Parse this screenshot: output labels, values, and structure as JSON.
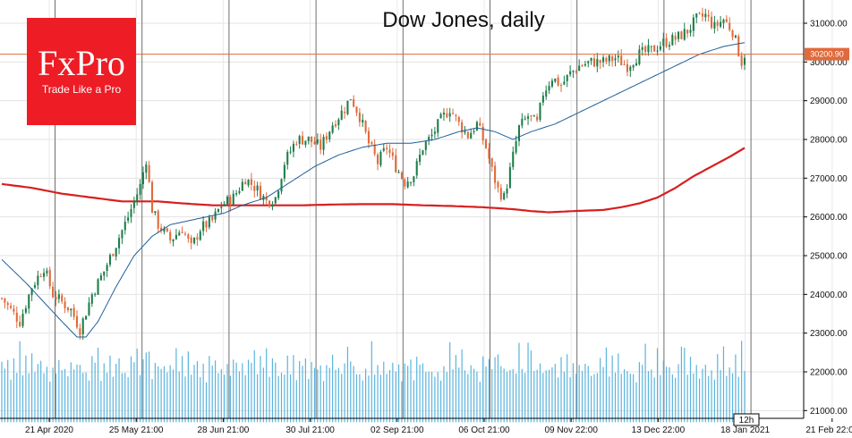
{
  "chart_data": {
    "type": "candlestick",
    "title": "Dow Jones, daily",
    "y_range": [
      20800,
      31600
    ],
    "y_ticks": [
      21000,
      22000,
      23000,
      24000,
      25000,
      26000,
      27000,
      28000,
      29000,
      30000,
      31000
    ],
    "y_tick_labels": [
      "21000.00",
      "22000.00",
      "23000.00",
      "24000.00",
      "25000.00",
      "26000.00",
      "27000.00",
      "28000.00",
      "29000.00",
      "30000.00",
      "31000.00"
    ],
    "x_tick_labels": [
      "21 Apr 2020",
      "25 May 21:00",
      "28 Jun 21:00",
      "30 Jul 21:00",
      "02 Sep 21:00",
      "06 Oct 21:00",
      "09 Nov 22:00",
      "13 Dec 22:00",
      "18 Jan 2021",
      "21 Feb 22:00"
    ],
    "current_price": 30200.9,
    "current_price_label": "30200.90",
    "timeframe_label": "12h",
    "anchors": [
      [
        0,
        23900
      ],
      [
        6,
        23300
      ],
      [
        10,
        24200
      ],
      [
        14,
        24700
      ],
      [
        17,
        24000
      ],
      [
        20,
        23800
      ],
      [
        23,
        23600
      ],
      [
        26,
        23100
      ],
      [
        30,
        24000
      ],
      [
        34,
        24600
      ],
      [
        38,
        25300
      ],
      [
        42,
        26000
      ],
      [
        46,
        26800
      ],
      [
        48,
        27500
      ],
      [
        50,
        26200
      ],
      [
        52,
        25800
      ],
      [
        56,
        25400
      ],
      [
        60,
        25700
      ],
      [
        63,
        25200
      ],
      [
        66,
        25700
      ],
      [
        70,
        25900
      ],
      [
        73,
        26300
      ],
      [
        77,
        26500
      ],
      [
        81,
        27000
      ],
      [
        85,
        26700
      ],
      [
        88,
        26400
      ],
      [
        91,
        26500
      ],
      [
        94,
        27400
      ],
      [
        98,
        28000
      ],
      [
        102,
        28000
      ],
      [
        106,
        27800
      ],
      [
        110,
        28400
      ],
      [
        114,
        28800
      ],
      [
        116,
        29100
      ],
      [
        119,
        28600
      ],
      [
        122,
        27900
      ],
      [
        125,
        27400
      ],
      [
        128,
        27800
      ],
      [
        131,
        27300
      ],
      [
        134,
        26900
      ],
      [
        137,
        27100
      ],
      [
        140,
        27800
      ],
      [
        143,
        28100
      ],
      [
        146,
        28500
      ],
      [
        149,
        28800
      ],
      [
        152,
        28400
      ],
      [
        155,
        28100
      ],
      [
        158,
        28400
      ],
      [
        161,
        27800
      ],
      [
        163,
        27200
      ],
      [
        165,
        26700
      ],
      [
        167,
        26500
      ],
      [
        169,
        27200
      ],
      [
        172,
        28300
      ],
      [
        175,
        28600
      ],
      [
        178,
        28400
      ],
      [
        180,
        29200
      ],
      [
        183,
        29600
      ],
      [
        186,
        29400
      ],
      [
        189,
        29700
      ],
      [
        192,
        29900
      ],
      [
        196,
        30000
      ],
      [
        200,
        30000
      ],
      [
        204,
        30100
      ],
      [
        208,
        29900
      ],
      [
        212,
        30200
      ],
      [
        216,
        30300
      ],
      [
        220,
        30500
      ],
      [
        224,
        30600
      ],
      [
        228,
        30800
      ],
      [
        231,
        31100
      ],
      [
        234,
        31200
      ],
      [
        237,
        30900
      ],
      [
        240,
        31100
      ],
      [
        243,
        30800
      ],
      [
        246,
        30000
      ],
      [
        247,
        30200
      ]
    ],
    "vol_base": [
      1150,
      950,
      1100,
      850,
      1250,
      1050,
      1500,
      900,
      1200,
      1000,
      1350,
      950,
      1100
    ],
    "vol_spikes": [
      [
        48,
        1500
      ],
      [
        90,
        1350
      ],
      [
        115,
        1650
      ],
      [
        165,
        1450
      ],
      [
        172,
        1750
      ],
      [
        176,
        1550
      ],
      [
        226,
        1650
      ],
      [
        244,
        1450
      ],
      [
        246,
        1800
      ]
    ],
    "ma_fast": [
      [
        0,
        24900
      ],
      [
        8,
        24300
      ],
      [
        14,
        23800
      ],
      [
        20,
        23300
      ],
      [
        25,
        22900
      ],
      [
        28,
        22900
      ],
      [
        32,
        23300
      ],
      [
        38,
        24200
      ],
      [
        44,
        25000
      ],
      [
        50,
        25500
      ],
      [
        56,
        25800
      ],
      [
        62,
        25900
      ],
      [
        68,
        26000
      ],
      [
        74,
        26100
      ],
      [
        80,
        26300
      ],
      [
        88,
        26500
      ],
      [
        96,
        26900
      ],
      [
        104,
        27300
      ],
      [
        112,
        27600
      ],
      [
        120,
        27800
      ],
      [
        128,
        27900
      ],
      [
        136,
        27900
      ],
      [
        144,
        28000
      ],
      [
        152,
        28200
      ],
      [
        158,
        28300
      ],
      [
        164,
        28200
      ],
      [
        170,
        28000
      ],
      [
        176,
        28200
      ],
      [
        184,
        28400
      ],
      [
        192,
        28700
      ],
      [
        200,
        29000
      ],
      [
        208,
        29300
      ],
      [
        216,
        29600
      ],
      [
        224,
        29900
      ],
      [
        232,
        30200
      ],
      [
        240,
        30400
      ],
      [
        247,
        30500
      ]
    ],
    "ma_slow": [
      [
        0,
        26850
      ],
      [
        10,
        26750
      ],
      [
        20,
        26600
      ],
      [
        30,
        26500
      ],
      [
        40,
        26400
      ],
      [
        52,
        26400
      ],
      [
        60,
        26350
      ],
      [
        70,
        26300
      ],
      [
        80,
        26300
      ],
      [
        90,
        26300
      ],
      [
        100,
        26300
      ],
      [
        110,
        26320
      ],
      [
        120,
        26330
      ],
      [
        130,
        26330
      ],
      [
        140,
        26300
      ],
      [
        150,
        26280
      ],
      [
        160,
        26250
      ],
      [
        170,
        26200
      ],
      [
        176,
        26150
      ],
      [
        182,
        26120
      ],
      [
        190,
        26150
      ],
      [
        200,
        26180
      ],
      [
        206,
        26250
      ],
      [
        212,
        26350
      ],
      [
        218,
        26500
      ],
      [
        224,
        26750
      ],
      [
        230,
        27050
      ],
      [
        236,
        27300
      ],
      [
        242,
        27550
      ],
      [
        247,
        27780
      ]
    ],
    "colors": {
      "bull": "#1e7d4a",
      "bear": "#e06a3c",
      "ma_fast": "#1f5f99",
      "ma_slow": "#d81f1f",
      "volume": "#5ab4dd",
      "price_line": "#e06a3c",
      "price_tag": "#e06a3c"
    }
  },
  "logo": {
    "brand": "FxPro",
    "tagline": "Trade Like a Pro",
    "color": "#ee1c25"
  }
}
